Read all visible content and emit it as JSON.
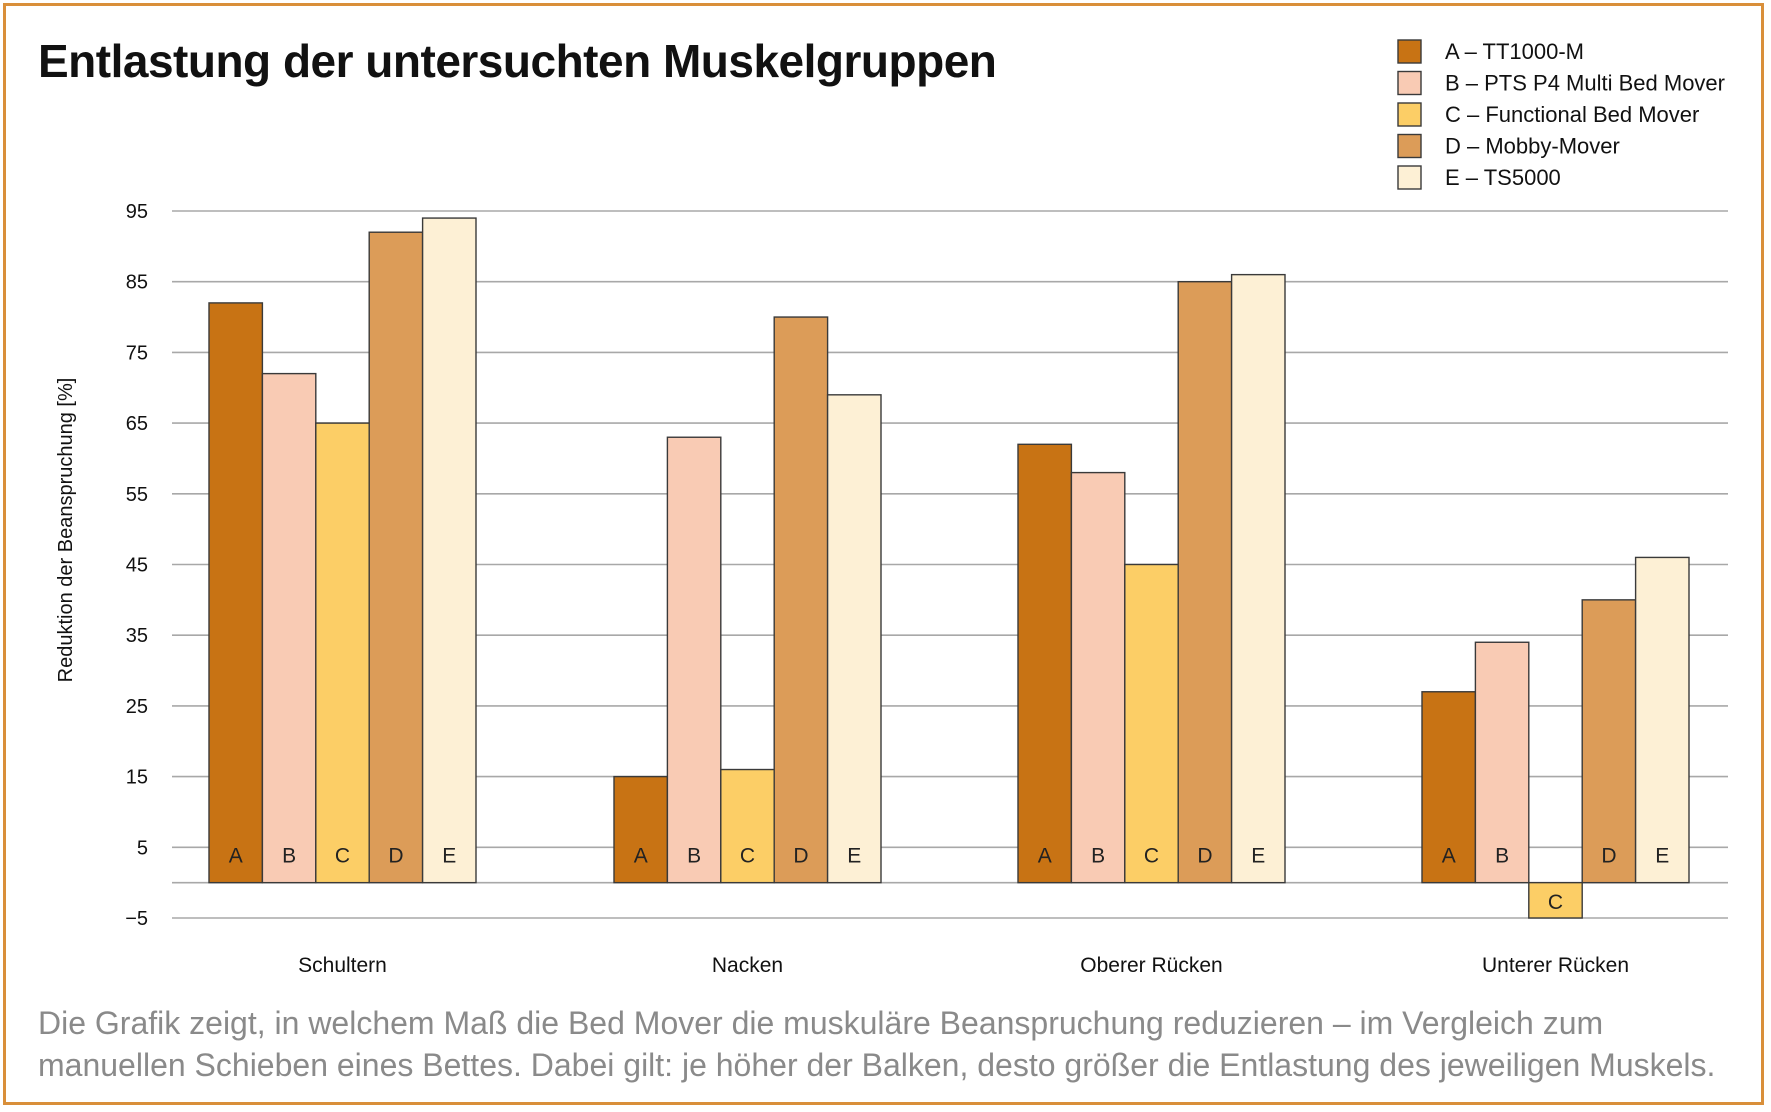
{
  "title": "Entlastung der untersuchten Muskelgruppen",
  "caption": "Die Grafik zeigt, in welchem Maß die Bed Mover die muskuläre Beanspruchung reduzieren – im Vergleich zum manuellen Schieben eines Bettes. Dabei gilt: je höher der Balken, desto größer die Entlastung des jeweiligen Muskels.",
  "chart_data": {
    "type": "bar",
    "title": "Entlastung der untersuchten Muskelgruppen",
    "xlabel": "",
    "ylabel": "Reduktion der Beanspruchung [%]",
    "ylim": [
      -5,
      95
    ],
    "yticks": [
      95,
      85,
      75,
      65,
      55,
      45,
      35,
      25,
      15,
      5,
      -5
    ],
    "grid": true,
    "legend_position": "top-right",
    "categories": [
      "Schultern",
      "Nacken",
      "Oberer Rücken",
      "Unterer Rücken"
    ],
    "series": [
      {
        "name": "A – TT1000-M",
        "letter": "A",
        "color": "#c87314",
        "values": [
          82,
          15,
          62,
          27
        ]
      },
      {
        "name": "B – PTS P4 Multi Bed Mover",
        "letter": "B",
        "color": "#f9cbb4",
        "values": [
          72,
          63,
          58,
          34
        ]
      },
      {
        "name": "C – Functional Bed Mover",
        "letter": "C",
        "color": "#fcce66",
        "values": [
          65,
          16,
          45,
          -5
        ]
      },
      {
        "name": "D – Mobby-Mover",
        "letter": "D",
        "color": "#dc9c58",
        "values": [
          92,
          80,
          85,
          40
        ]
      },
      {
        "name": "E – TS5000",
        "letter": "E",
        "color": "#fdf0d5",
        "values": [
          94,
          69,
          86,
          46
        ]
      }
    ]
  }
}
